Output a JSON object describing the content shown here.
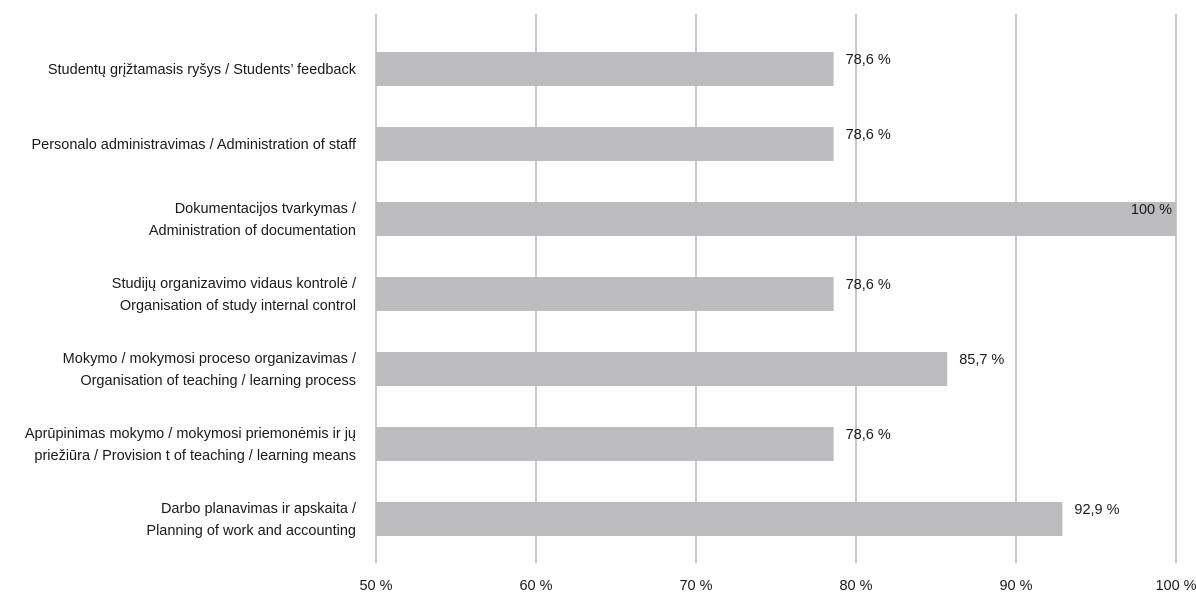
{
  "chart_data": {
    "type": "bar",
    "orientation": "horizontal",
    "title": "",
    "xlabel": "",
    "ylabel": "",
    "xlim": [
      50,
      100
    ],
    "x_ticks": [
      50,
      60,
      70,
      80,
      90,
      100
    ],
    "x_tick_labels": [
      "50 %",
      "60 %",
      "70 %",
      "80 %",
      "90 %",
      "100 %"
    ],
    "grid": "vertical",
    "legend": "none",
    "bar_color": "#bcbcbe",
    "grid_color": "#c8c8c8",
    "categories": [
      [
        "Studentų grįžtamasis ryšys / Students’ feedback"
      ],
      [
        "Personalo administravimas / Administration of staff"
      ],
      [
        "Dokumentacijos tvarkymas /",
        "Administration of documentation"
      ],
      [
        "Studijų organizavimo vidaus kontrolė /",
        "Organisation of study internal control"
      ],
      [
        "Mokymo / mokymosi proceso organizavimas /",
        "Organisation of teaching / learning process"
      ],
      [
        "Aprūpinimas mokymo / mokymosi priemonėmis ir jų",
        "priežiūra / Provision t of teaching / learning  means"
      ],
      [
        "Darbo planavimas ir apskaita /",
        "Planning of work and accounting"
      ]
    ],
    "values": [
      78.6,
      78.6,
      100,
      78.6,
      85.7,
      78.6,
      92.9
    ],
    "value_labels": [
      "78,6 %",
      "78,6 %",
      "100 %",
      "78,6 %",
      "85,7 %",
      "78,6 %",
      "92,9 %"
    ]
  }
}
